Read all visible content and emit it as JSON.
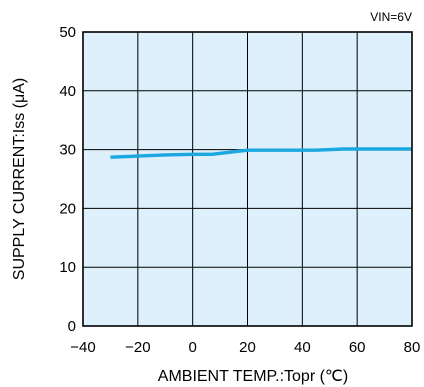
{
  "chart_data": {
    "type": "line",
    "xlabel": "AMBIENT TEMP.:Topr (℃)",
    "ylabel": "SUPPLY CURRENT:Iss (μA)",
    "annotation": "VIN=6V",
    "xlim": [
      -40,
      80
    ],
    "ylim": [
      0,
      50
    ],
    "xticks": [
      -40,
      -20,
      0,
      20,
      40,
      60,
      80
    ],
    "yticks": [
      0,
      10,
      20,
      30,
      40,
      50
    ],
    "x_tick_labels": [
      "−40",
      "−20",
      "0",
      "20",
      "40",
      "60",
      "80"
    ],
    "y_tick_labels": [
      "0",
      "10",
      "20",
      "30",
      "40",
      "50"
    ],
    "grid": true,
    "background_color": "#ddf0fb",
    "series": [
      {
        "color": "#1ba8e0",
        "x": [
          -30,
          -20,
          -10,
          0,
          7,
          20,
          30,
          40,
          45,
          55,
          65,
          80
        ],
        "y": [
          28.7,
          28.9,
          29.1,
          29.2,
          29.2,
          29.9,
          29.9,
          29.9,
          29.9,
          30.1,
          30.1,
          30.1
        ]
      }
    ]
  }
}
